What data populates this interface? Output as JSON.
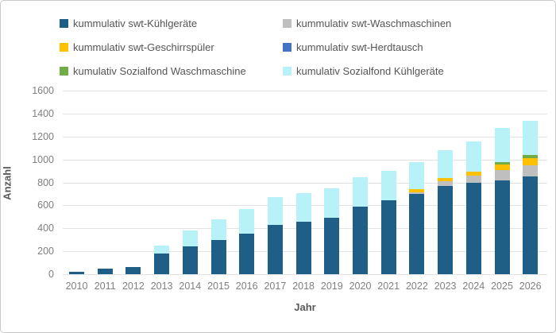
{
  "chart_data": {
    "type": "bar",
    "stacked": true,
    "title": "",
    "xlabel": "Jahr",
    "ylabel": "Anzahl",
    "ylim": [
      0,
      1600
    ],
    "ytick_step": 200,
    "grid": true,
    "legend_position": "top",
    "categories": [
      "2010",
      "2011",
      "2012",
      "2013",
      "2014",
      "2015",
      "2016",
      "2017",
      "2018",
      "2019",
      "2020",
      "2021",
      "2022",
      "2023",
      "2024",
      "2025",
      "2026"
    ],
    "series": [
      {
        "name": "kummulativ swt-Kühlgeräte",
        "color": "#1f5e87",
        "values": [
          20,
          50,
          65,
          180,
          245,
          300,
          355,
          430,
          455,
          495,
          590,
          645,
          700,
          770,
          795,
          815,
          850
        ]
      },
      {
        "name": "kummulativ swt-Waschmaschinen",
        "color": "#bfbfbf",
        "values": [
          0,
          0,
          0,
          0,
          0,
          0,
          0,
          0,
          0,
          0,
          0,
          0,
          15,
          40,
          65,
          95,
          100
        ]
      },
      {
        "name": "kummulativ swt-Geschirrspüler",
        "color": "#ffc000",
        "values": [
          0,
          0,
          0,
          0,
          0,
          0,
          0,
          0,
          0,
          0,
          0,
          0,
          25,
          25,
          35,
          45,
          60
        ]
      },
      {
        "name": "kummulativ swt-Herdtausch",
        "color": "#4472c4",
        "values": [
          0,
          0,
          0,
          0,
          0,
          0,
          0,
          0,
          0,
          0,
          0,
          0,
          0,
          0,
          0,
          0,
          0
        ]
      },
      {
        "name": "kumulativ Sozialfond Waschmaschine",
        "color": "#70ad47",
        "values": [
          0,
          0,
          0,
          0,
          0,
          0,
          0,
          0,
          0,
          0,
          0,
          0,
          0,
          0,
          0,
          20,
          30
        ]
      },
      {
        "name": "kumulativ Sozialfond Kühlgeräte",
        "color": "#b7f2f8",
        "values": [
          0,
          0,
          0,
          70,
          135,
          175,
          215,
          240,
          250,
          250,
          255,
          255,
          240,
          245,
          265,
          300,
          295
        ]
      }
    ]
  },
  "colors": {
    "gridline": "#e3e3e3",
    "tick_text": "#7f7f7f",
    "axis_title_text": "#595959",
    "legend_text": "#555555",
    "border": "#c9c9c9",
    "background": "#ffffff"
  }
}
